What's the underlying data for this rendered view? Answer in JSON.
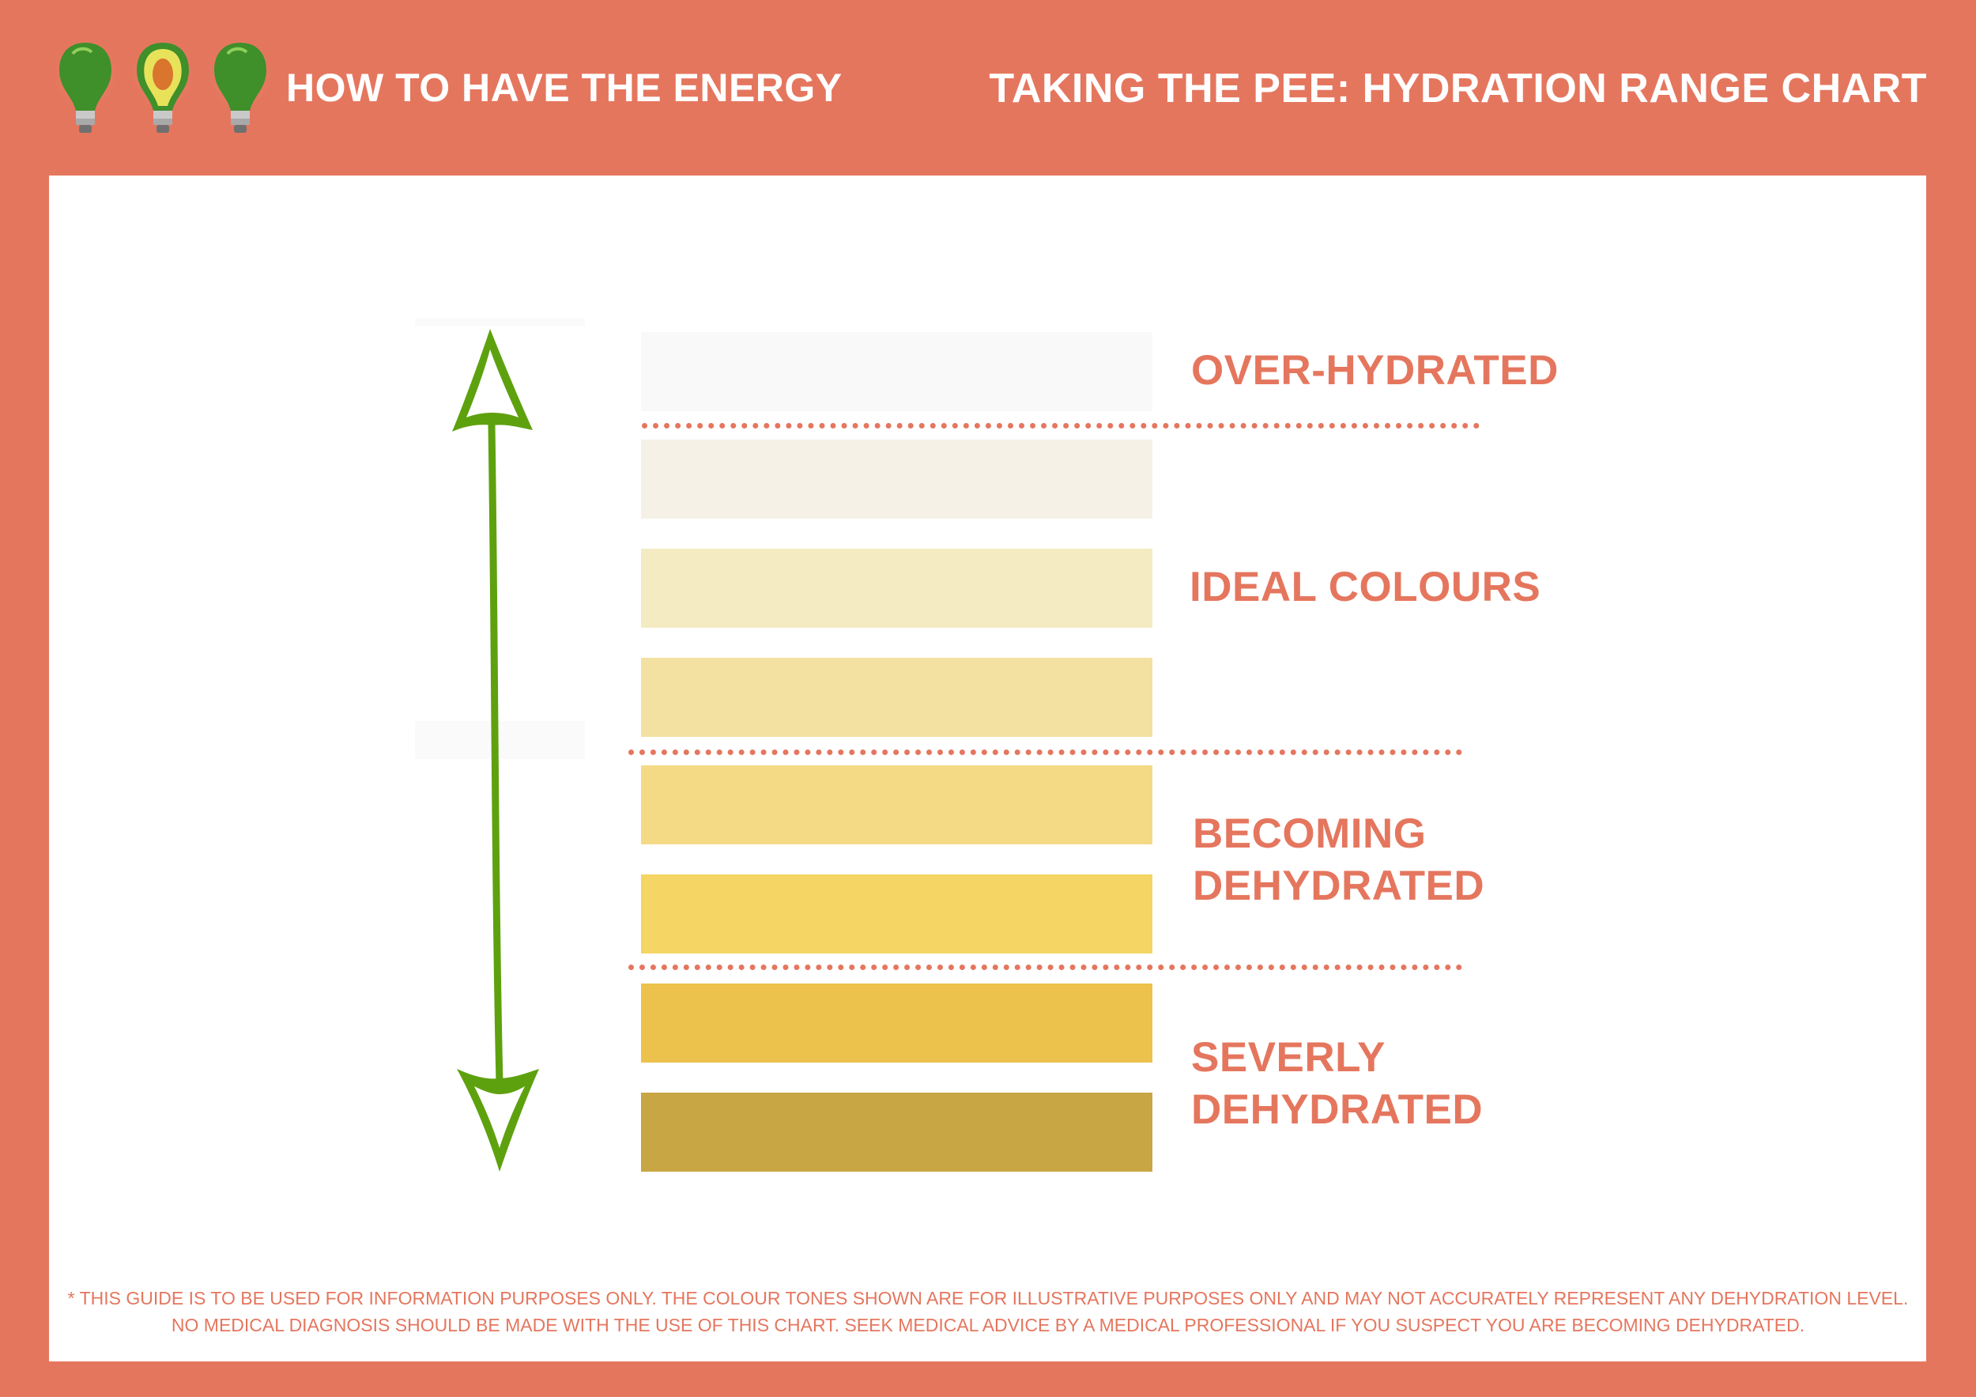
{
  "header": {
    "brand": "HOW TO HAVE THE ENERGY",
    "title": "TAKING THE PEE: HYDRATION RANGE CHART",
    "logo_icon": "avocado-lightbulbs-logo"
  },
  "colors": {
    "background": "#E5765E",
    "panel": "#FFFFFF",
    "accent": "#E5765E",
    "arrow": "#5EA10E"
  },
  "chart": {
    "arrow_icon": "double-headed-arrow-icon",
    "swatches": [
      {
        "color": "#F9F9F9"
      },
      {
        "color": "#F5F1E6"
      },
      {
        "color": "#F4EBC2"
      },
      {
        "color": "#F2E1A0"
      },
      {
        "color": "#F5DA86"
      },
      {
        "color": "#F5D563"
      },
      {
        "color": "#ECC24C"
      },
      {
        "color": "#C9A644"
      }
    ],
    "zones": [
      {
        "lines": [
          "OVER-HYDRATED"
        ]
      },
      {
        "lines": [
          "IDEAL COLOURS"
        ]
      },
      {
        "lines": [
          "BECOMING",
          "DEHYDRATED"
        ]
      },
      {
        "lines": [
          "SEVERLY",
          "DEHYDRATED"
        ]
      }
    ]
  },
  "disclaimer": {
    "line1": "* THIS GUIDE IS TO BE USED FOR INFORMATION PURPOSES ONLY. THE COLOUR TONES SHOWN ARE FOR ILLUSTRATIVE PURPOSES ONLY AND MAY NOT ACCURATELY REPRESENT ANY DEHYDRATION LEVEL.",
    "line2": "NO MEDICAL DIAGNOSIS SHOULD BE MADE WITH THE USE OF THIS CHART. SEEK MEDICAL ADVICE BY A MEDICAL PROFESSIONAL IF YOU SUSPECT YOU ARE BECOMING DEHYDRATED."
  }
}
